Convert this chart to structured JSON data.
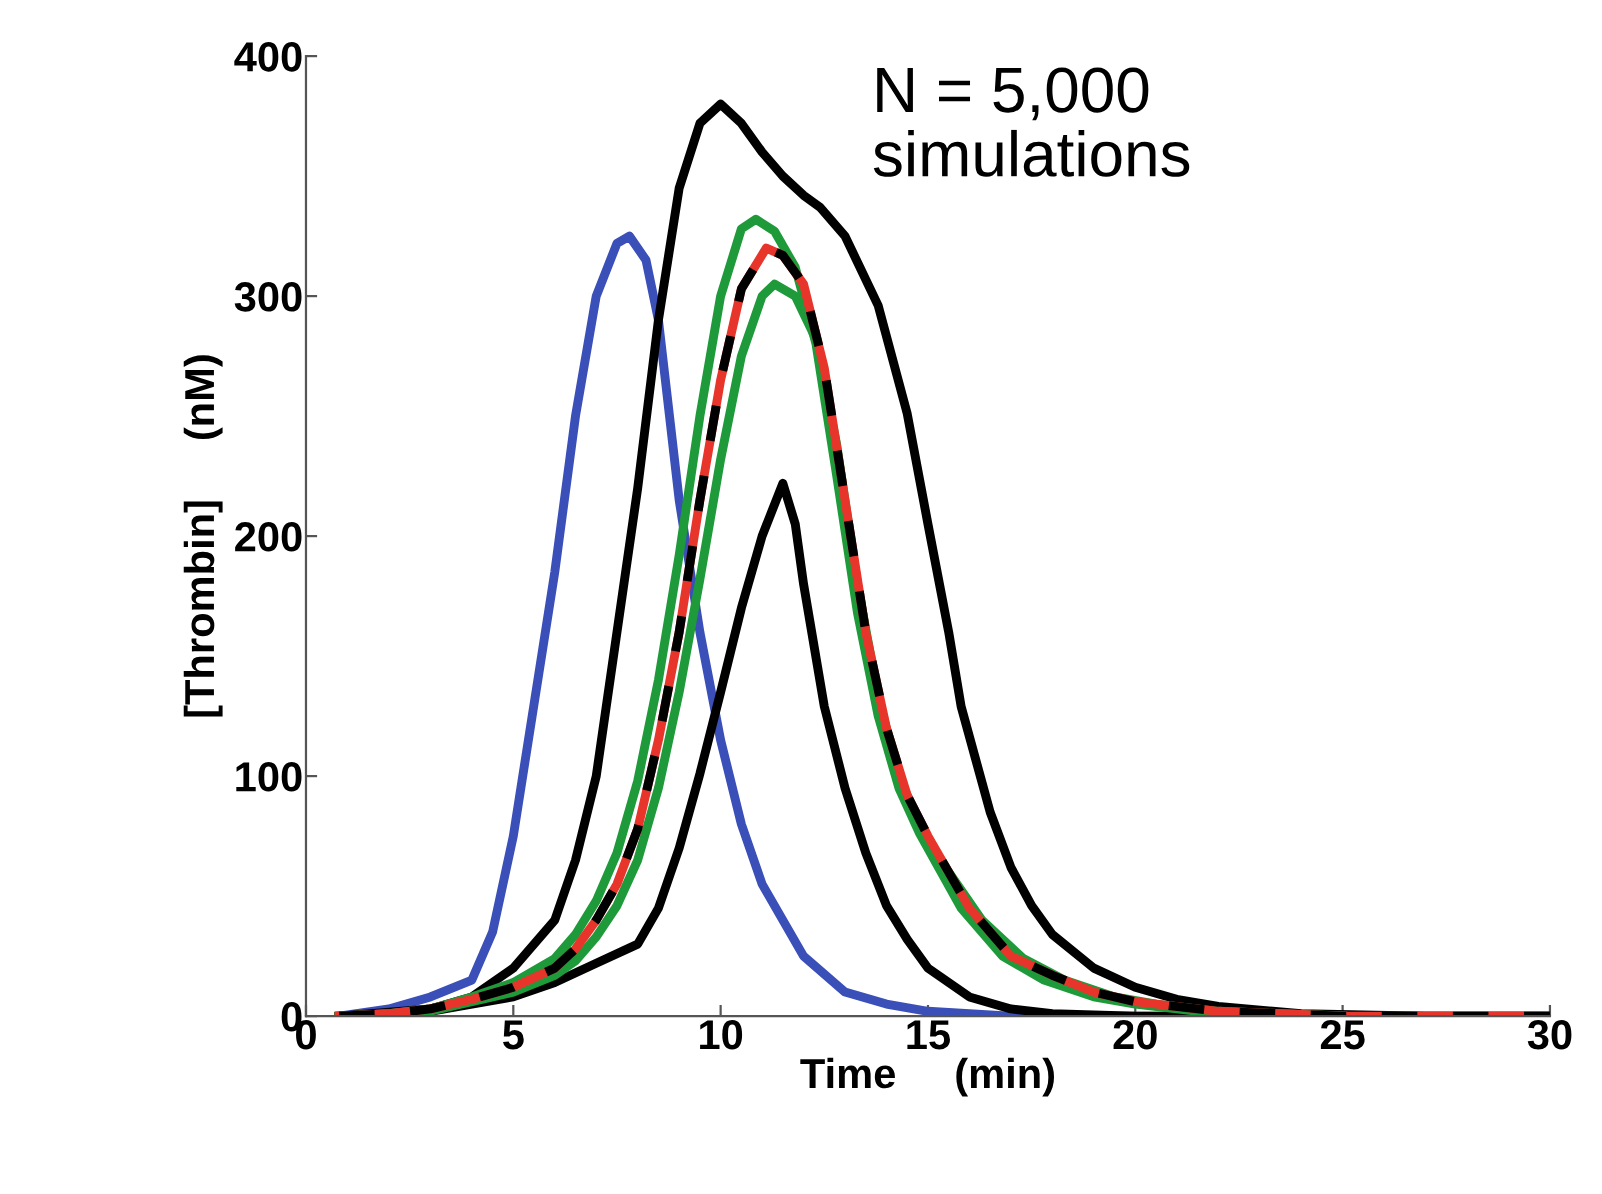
{
  "chart_data": {
    "type": "line",
    "xlabel": "Time     (min)",
    "ylabel": "[Thrombin]     (nM)",
    "xlim": [
      0,
      30
    ],
    "ylim": [
      0,
      400
    ],
    "xticks": [
      0,
      5,
      10,
      15,
      20,
      25,
      30
    ],
    "yticks": [
      0,
      100,
      200,
      300,
      400
    ],
    "grid": false,
    "marker": "none",
    "annotations": [
      "N = 5,000\nsimulations"
    ],
    "series": [
      {
        "color": "#3a4fb8",
        "x": [
          0.8,
          2,
          3,
          4,
          4.5,
          5,
          5.5,
          6,
          6.5,
          7,
          7.5,
          7.8,
          8.2,
          8.5,
          9,
          9.5,
          10,
          10.5,
          11,
          12,
          13,
          14,
          15,
          17,
          21
        ],
        "values": [
          0,
          3,
          8,
          15,
          35,
          75,
          130,
          185,
          250,
          300,
          322,
          325,
          315,
          290,
          215,
          160,
          115,
          80,
          55,
          25,
          10,
          5,
          2,
          0,
          0
        ]
      },
      {
        "color": "#000000",
        "x": [
          0.8,
          3,
          4,
          5,
          6,
          6.5,
          7,
          7.5,
          8,
          8.5,
          9,
          9.5,
          10,
          10.5,
          11,
          11.5,
          12,
          12.4,
          13,
          13.8,
          14.5,
          15,
          15.5,
          15.8,
          16.5,
          17,
          17.5,
          18,
          19,
          20,
          21,
          22,
          24,
          27,
          30
        ],
        "values": [
          0,
          3,
          8,
          20,
          40,
          65,
          100,
          160,
          220,
          290,
          345,
          372,
          380,
          372,
          360,
          350,
          342,
          337,
          325,
          296,
          251,
          205,
          160,
          129,
          85,
          62,
          46,
          34,
          20,
          12,
          7,
          4,
          1,
          0,
          0
        ]
      },
      {
        "color": "#000000",
        "x": [
          0.8,
          3,
          5,
          6,
          7,
          8,
          8.5,
          9,
          9.5,
          10,
          10.5,
          11,
          11.5,
          11.8,
          12,
          12.5,
          13,
          13.5,
          14,
          14.5,
          15,
          16,
          17,
          18,
          20,
          25,
          30
        ],
        "values": [
          0,
          2,
          8,
          14,
          22,
          30,
          45,
          70,
          101,
          135,
          170,
          200,
          222,
          205,
          180,
          129,
          95,
          68,
          46,
          32,
          20,
          8,
          3,
          1,
          0,
          0,
          0
        ]
      },
      {
        "color": "#1f9a3a",
        "x": [
          0.8,
          2,
          3,
          4,
          5,
          6,
          6.5,
          7,
          7.5,
          8,
          8.5,
          9,
          9.5,
          10,
          10.5,
          10.85,
          11.3,
          11.8,
          12.3,
          12.8,
          13.3,
          13.8,
          14.3,
          14.8,
          15.8,
          16.8,
          17.8,
          19,
          20,
          22,
          25
        ],
        "values": [
          0,
          1,
          3,
          8,
          14,
          24,
          34,
          48,
          68,
          98,
          140,
          192,
          250,
          300,
          328,
          332,
          327,
          312,
          280,
          225,
          168,
          125,
          95,
          76,
          45,
          25,
          15,
          8,
          5,
          1,
          0
        ]
      },
      {
        "color": "#1f9a3a",
        "x": [
          0.8,
          2,
          3,
          4,
          5,
          6,
          6.5,
          7,
          7.5,
          8,
          8.5,
          9,
          9.5,
          10,
          10.5,
          11,
          11.3,
          11.8,
          12.3,
          12.8,
          13.3,
          13.8,
          14.3,
          14.8,
          15.3,
          16.3,
          17.3,
          18.3,
          19.5,
          20.5,
          22,
          25
        ],
        "values": [
          0,
          1,
          2,
          6,
          10,
          17,
          23,
          33,
          46,
          65,
          95,
          135,
          182,
          232,
          275,
          300,
          305,
          300,
          282,
          238,
          180,
          133,
          100,
          80,
          65,
          40,
          24,
          15,
          8,
          5,
          2,
          0
        ]
      },
      {
        "color": "#e8352b",
        "x": [
          0.8,
          2,
          3,
          4,
          5,
          6,
          6.5,
          7,
          7.5,
          8,
          8.5,
          9,
          9.5,
          10,
          10.5,
          11.1,
          11.5,
          12,
          12.5,
          13,
          13.5,
          14,
          14.5,
          15,
          16,
          17,
          18,
          19,
          20,
          22,
          25,
          30
        ],
        "values": [
          0,
          1,
          3,
          7,
          12,
          20,
          28,
          40,
          55,
          78,
          115,
          160,
          215,
          265,
          303,
          320,
          317,
          305,
          270,
          215,
          160,
          120,
          92,
          75,
          45,
          25,
          17,
          10,
          6,
          2,
          0,
          0
        ]
      },
      {
        "color": "#000000",
        "line_style": "dashed",
        "x": [
          0.8,
          2,
          3,
          4,
          5,
          6,
          6.5,
          7,
          7.5,
          8,
          8.5,
          9,
          9.5,
          10,
          10.5,
          11.1,
          11.5,
          12,
          12.5,
          13,
          13.5,
          14,
          14.5,
          15,
          16,
          17,
          18,
          19,
          20,
          22,
          25,
          30
        ],
        "values": [
          0,
          1,
          3,
          7,
          12,
          20,
          28,
          40,
          55,
          78,
          115,
          160,
          215,
          265,
          303,
          320,
          317,
          305,
          270,
          215,
          160,
          120,
          92,
          75,
          45,
          25,
          17,
          10,
          6,
          2,
          0,
          0
        ]
      }
    ]
  }
}
